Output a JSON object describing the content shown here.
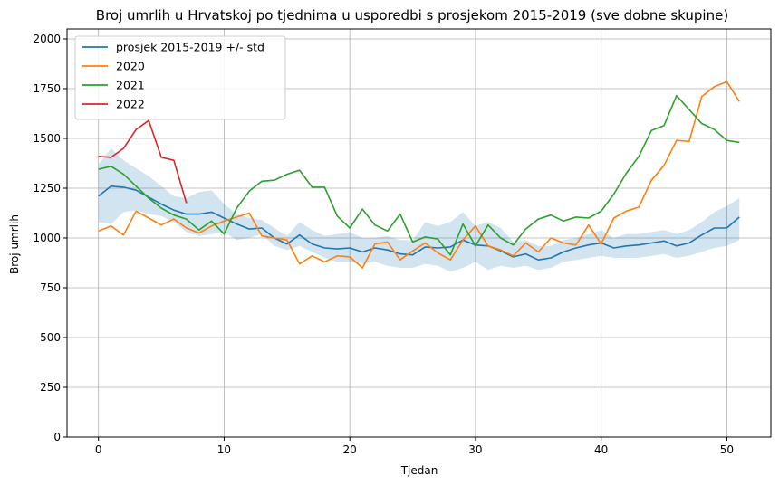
{
  "chart_data": {
    "type": "line",
    "title": "Broj umrlih u Hrvatskoj po tjednima u usporedbi s prosjekom 2015-2019 (sve dobne skupine)",
    "xlabel": "Tjedan",
    "ylabel": "Broj umrlih",
    "xlim": [
      -2.5,
      53.5
    ],
    "ylim": [
      0,
      2050
    ],
    "xticks": [
      0,
      10,
      20,
      30,
      40,
      50
    ],
    "yticks": [
      0,
      250,
      500,
      750,
      1000,
      1250,
      1500,
      1750,
      2000
    ],
    "grid": true,
    "legend_position": "top-left",
    "band": {
      "series": "prosjek 2015-2019 +/- std",
      "color": "#1f77b4",
      "x": [
        0,
        1,
        2,
        3,
        4,
        5,
        6,
        7,
        8,
        9,
        10,
        11,
        12,
        13,
        14,
        15,
        16,
        17,
        18,
        19,
        20,
        21,
        22,
        23,
        24,
        25,
        26,
        27,
        28,
        29,
        30,
        31,
        32,
        33,
        34,
        35,
        36,
        37,
        38,
        39,
        40,
        41,
        42,
        43,
        44,
        45,
        46,
        47,
        48,
        49,
        50,
        51
      ],
      "lower": [
        1080,
        1070,
        1130,
        1140,
        1120,
        1110,
        1080,
        1030,
        1010,
        1020,
        1030,
        990,
        1000,
        1020,
        960,
        940,
        960,
        930,
        900,
        880,
        880,
        870,
        880,
        860,
        850,
        850,
        870,
        860,
        830,
        850,
        880,
        840,
        860,
        850,
        860,
        840,
        850,
        880,
        890,
        900,
        910,
        900,
        900,
        900,
        910,
        920,
        900,
        910,
        930,
        950,
        960,
        990
      ],
      "upper": [
        1370,
        1450,
        1390,
        1350,
        1310,
        1260,
        1210,
        1200,
        1230,
        1240,
        1170,
        1120,
        1100,
        1090,
        1050,
        1010,
        1080,
        1040,
        1010,
        1020,
        1030,
        1000,
        1000,
        1010,
        990,
        990,
        1080,
        1060,
        1080,
        1130,
        1060,
        1080,
        1050,
        980,
        990,
        960,
        960,
        990,
        1000,
        1020,
        1040,
        1000,
        1020,
        1020,
        1030,
        1040,
        1020,
        1040,
        1080,
        1130,
        1160,
        1200
      ]
    },
    "series": [
      {
        "name": "prosjek 2015-2019 +/- std",
        "color": "#1f77b4",
        "x": [
          0,
          1,
          2,
          3,
          4,
          5,
          6,
          7,
          8,
          9,
          10,
          11,
          12,
          13,
          14,
          15,
          16,
          17,
          18,
          19,
          20,
          21,
          22,
          23,
          24,
          25,
          26,
          27,
          28,
          29,
          30,
          31,
          32,
          33,
          34,
          35,
          36,
          37,
          38,
          39,
          40,
          41,
          42,
          43,
          44,
          45,
          46,
          47,
          48,
          49,
          50,
          51
        ],
        "values": [
          1210,
          1260,
          1255,
          1240,
          1205,
          1170,
          1140,
          1120,
          1120,
          1130,
          1100,
          1070,
          1045,
          1050,
          1000,
          970,
          1015,
          970,
          950,
          945,
          950,
          930,
          950,
          940,
          920,
          915,
          955,
          950,
          955,
          990,
          965,
          960,
          935,
          905,
          920,
          890,
          900,
          930,
          950,
          965,
          975,
          950,
          960,
          965,
          975,
          985,
          960,
          975,
          1015,
          1050,
          1050,
          1105
        ]
      },
      {
        "name": "2020",
        "color": "#ff7f0e",
        "x": [
          0,
          1,
          2,
          3,
          4,
          5,
          6,
          7,
          8,
          9,
          10,
          11,
          12,
          13,
          14,
          15,
          16,
          17,
          18,
          19,
          20,
          21,
          22,
          23,
          24,
          25,
          26,
          27,
          28,
          29,
          30,
          31,
          32,
          33,
          34,
          35,
          36,
          37,
          38,
          39,
          40,
          41,
          42,
          43,
          44,
          45,
          46,
          47,
          48,
          49,
          50,
          51
        ],
        "values": [
          1035,
          1060,
          1015,
          1135,
          1100,
          1065,
          1095,
          1050,
          1025,
          1060,
          1085,
          1105,
          1125,
          1010,
          1000,
          990,
          870,
          910,
          880,
          910,
          905,
          850,
          970,
          980,
          890,
          935,
          975,
          925,
          890,
          990,
          1060,
          960,
          940,
          910,
          975,
          930,
          1000,
          975,
          965,
          1065,
          970,
          1100,
          1135,
          1155,
          1290,
          1365,
          1490,
          1485,
          1710,
          1760,
          1785,
          1685
        ]
      },
      {
        "name": "2021",
        "color": "#2ca02c",
        "x": [
          0,
          1,
          2,
          3,
          4,
          5,
          6,
          7,
          8,
          9,
          10,
          11,
          12,
          13,
          14,
          15,
          16,
          17,
          18,
          19,
          20,
          21,
          22,
          23,
          24,
          25,
          26,
          27,
          28,
          29,
          30,
          31,
          32,
          33,
          34,
          35,
          36,
          37,
          38,
          39,
          40,
          41,
          42,
          43,
          44,
          45,
          46,
          47,
          48,
          49,
          50,
          51
        ],
        "values": [
          1345,
          1360,
          1320,
          1260,
          1200,
          1150,
          1115,
          1095,
          1040,
          1085,
          1020,
          1150,
          1235,
          1285,
          1290,
          1320,
          1340,
          1255,
          1255,
          1110,
          1050,
          1145,
          1065,
          1035,
          1120,
          980,
          1005,
          995,
          915,
          1070,
          960,
          1065,
          1000,
          965,
          1045,
          1095,
          1115,
          1085,
          1105,
          1100,
          1135,
          1220,
          1325,
          1410,
          1540,
          1565,
          1715,
          1645,
          1575,
          1545,
          1490,
          1480
        ]
      },
      {
        "name": "2022",
        "color": "#d62728",
        "x": [
          0,
          1,
          2,
          3,
          4,
          5,
          6,
          7
        ],
        "values": [
          1410,
          1405,
          1450,
          1545,
          1590,
          1405,
          1390,
          1175
        ]
      }
    ]
  }
}
